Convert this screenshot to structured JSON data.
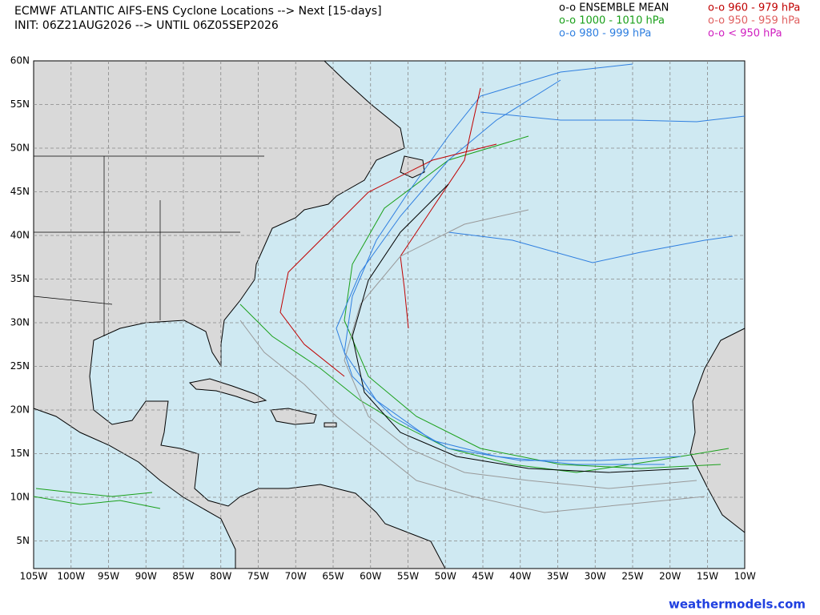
{
  "header": {
    "title": "ECMWF ATLANTIC AIFS-ENS Cyclone Locations --> Next [15-days]",
    "subtitle": "INIT: 06Z21AUG2026 --> UNTIL 06Z05SEP2026"
  },
  "legend": [
    {
      "label": "o-o ENSEMBLE MEAN",
      "color": "#000000"
    },
    {
      "label": "o-o 1000 - 1010 hPa",
      "color": "#1aa01a"
    },
    {
      "label": "o-o 980 - 999 hPa",
      "color": "#2f7fe0"
    },
    {
      "label": "o-o 960 - 979 hPa",
      "color": "#c00000"
    },
    {
      "label": "o-o 950 - 959 hPa",
      "color": "#e06060"
    },
    {
      "label": "o-o < 950 hPa",
      "color": "#d020c0"
    }
  ],
  "map": {
    "lat_labels": [
      "60N",
      "55N",
      "50N",
      "45N",
      "40N",
      "35N",
      "30N",
      "25N",
      "20N",
      "15N",
      "10N",
      "5N"
    ],
    "lon_labels": [
      "105W",
      "100W",
      "95W",
      "90W",
      "85W",
      "80W",
      "75W",
      "70W",
      "65W",
      "60W",
      "55W",
      "50W",
      "45W",
      "40W",
      "35W",
      "30W",
      "25W",
      "20W",
      "15W",
      "10W"
    ]
  },
  "footer": {
    "credit": "weathermodels.com"
  }
}
